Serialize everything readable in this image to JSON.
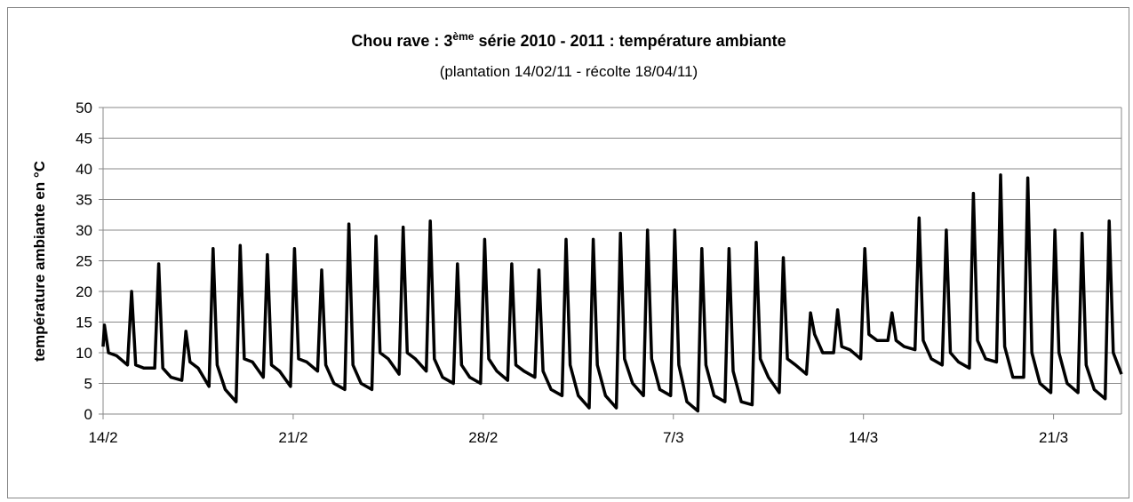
{
  "chart_data": {
    "type": "line",
    "title_parts": [
      "Chou rave : 3",
      "ème",
      " série  2010 - 2011 : température ambiante"
    ],
    "subtitle": "(plantation 14/02/11 - récolte 18/04/11)",
    "y_label": "température ambiante en °C",
    "xlim": [
      0,
      37.5
    ],
    "xticks": [
      {
        "value": 0,
        "label": "14/2"
      },
      {
        "value": 7,
        "label": "21/2"
      },
      {
        "value": 14,
        "label": "28/2"
      },
      {
        "value": 21,
        "label": "7/3"
      },
      {
        "value": 28,
        "label": "14/3"
      },
      {
        "value": 35,
        "label": "21/3"
      }
    ],
    "ylim": [
      0,
      50
    ],
    "yticks": [
      0,
      5,
      10,
      15,
      20,
      25,
      30,
      35,
      40,
      45,
      50
    ],
    "grid": true,
    "color": "#000000",
    "x": [
      0,
      0.05,
      0.2,
      0.5,
      0.9,
      1.05,
      1.2,
      1.5,
      1.9,
      2.05,
      2.2,
      2.5,
      2.9,
      3.05,
      3.2,
      3.5,
      3.9,
      4.05,
      4.2,
      4.5,
      4.9,
      5.05,
      5.2,
      5.5,
      5.9,
      6.05,
      6.2,
      6.5,
      6.9,
      7.05,
      7.2,
      7.5,
      7.9,
      8.05,
      8.2,
      8.5,
      8.9,
      9.05,
      9.2,
      9.5,
      9.9,
      10.05,
      10.2,
      10.5,
      10.9,
      11.05,
      11.2,
      11.5,
      11.9,
      12.05,
      12.2,
      12.5,
      12.9,
      13.05,
      13.2,
      13.5,
      13.9,
      14.05,
      14.2,
      14.5,
      14.9,
      15.05,
      15.2,
      15.5,
      15.9,
      16.05,
      16.2,
      16.5,
      16.9,
      17.05,
      17.2,
      17.5,
      17.9,
      18.05,
      18.2,
      18.5,
      18.9,
      19.05,
      19.2,
      19.5,
      19.9,
      20.05,
      20.2,
      20.5,
      20.9,
      21.05,
      21.2,
      21.5,
      21.9,
      22.05,
      22.2,
      22.5,
      22.9,
      23.05,
      23.2,
      23.5,
      23.9,
      24.05,
      24.2,
      24.5,
      24.9,
      25.05,
      25.2,
      25.5,
      25.9,
      26.05,
      26.2,
      26.5,
      26.9,
      27.05,
      27.2,
      27.5,
      27.9,
      28.05,
      28.2,
      28.5,
      28.9,
      29.05,
      29.2,
      29.5,
      29.9,
      30.05,
      30.2,
      30.5,
      30.9,
      31.05,
      31.2,
      31.5,
      31.9,
      32.05,
      32.2,
      32.5,
      32.9,
      33.05,
      33.2,
      33.5,
      33.9,
      34.05,
      34.2,
      34.5,
      34.9,
      35.05,
      35.2,
      35.5,
      35.9,
      36.05,
      36.2,
      36.5,
      36.9,
      37.05,
      37.2,
      37.5
    ],
    "values": [
      11,
      14.5,
      10,
      9.5,
      8,
      20,
      8,
      7.5,
      7.5,
      24.5,
      7.5,
      6,
      5.5,
      13.5,
      8.5,
      7.5,
      4.5,
      27,
      8,
      4,
      2,
      27.5,
      9,
      8.5,
      6,
      26,
      8,
      7,
      4.5,
      27,
      9,
      8.5,
      7,
      23.5,
      8,
      5,
      4,
      31,
      8,
      5,
      4,
      29,
      10,
      9,
      6.5,
      30.5,
      10,
      9,
      7,
      31.5,
      9,
      6,
      5,
      24.5,
      8,
      6,
      5,
      28.5,
      9,
      7,
      5.5,
      24.5,
      8,
      7,
      6,
      23.5,
      7,
      4,
      3,
      28.5,
      8,
      3,
      1,
      28.5,
      8,
      3,
      1,
      29.5,
      9,
      5,
      3,
      30,
      9,
      4,
      3,
      30,
      8,
      2,
      0.5,
      27,
      8,
      3,
      2,
      27,
      7,
      2,
      1.5,
      28,
      9,
      6,
      3.5,
      25.5,
      9,
      8,
      6.5,
      16.5,
      13,
      10,
      10,
      17,
      11,
      10.5,
      9,
      27,
      13,
      12,
      12,
      16.5,
      12,
      11,
      10.5,
      32,
      12,
      9,
      8,
      30,
      10,
      8.5,
      7.5,
      36,
      12,
      9,
      8.5,
      39,
      11,
      6,
      6,
      38.5,
      10,
      5,
      3.5,
      30,
      10,
      5,
      3.5,
      29.5,
      8,
      4,
      2.5,
      31.5,
      10,
      6.5
    ]
  }
}
